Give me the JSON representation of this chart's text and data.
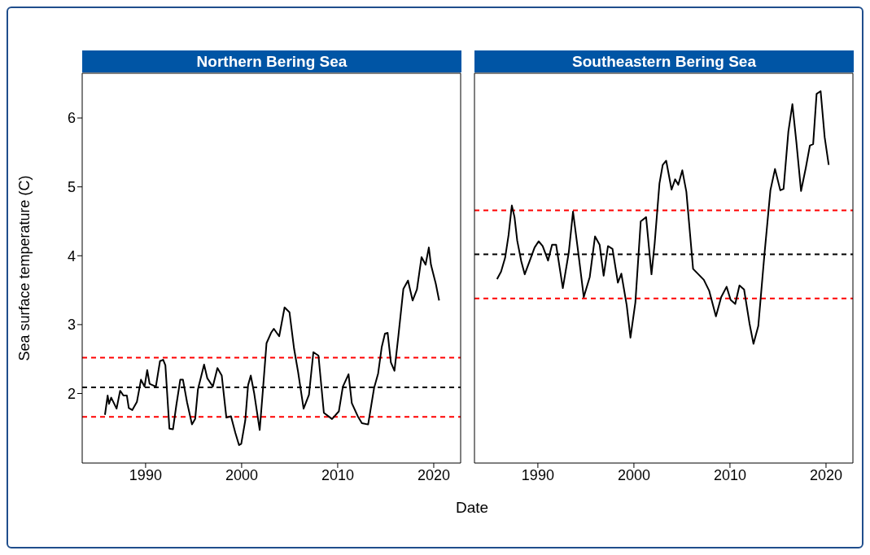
{
  "chart_data": [
    {
      "type": "line",
      "title": "Northern Bering Sea",
      "xlabel": "Date",
      "ylabel": "Sea surface temperature (C)",
      "xlim": [
        1983.4,
        2022.8
      ],
      "xticks": [
        1990,
        2000,
        2010,
        2020
      ],
      "ylim": [
        0.99,
        6.65
      ],
      "yticks": [
        2,
        3,
        4,
        5,
        6
      ],
      "grid": false,
      "legend": false,
      "marker": "none",
      "series": [
        {
          "color": "#000000",
          "x": [
            1985.77,
            1986.05,
            1986.19,
            1986.42,
            1986.98,
            1987.35,
            1987.69,
            1988.05,
            1988.25,
            1988.62,
            1989.1,
            1989.52,
            1989.89,
            1990.17,
            1990.42,
            1991.07,
            1991.5,
            1991.83,
            1992.06,
            1992.48,
            1992.85,
            1993.19,
            1993.61,
            1993.89,
            1994.32,
            1994.83,
            1995.16,
            1995.45,
            1996.09,
            1996.43,
            1997.0,
            1997.48,
            1997.93,
            1998.41,
            1998.89,
            1999.34,
            1999.73,
            1999.96,
            2000.38,
            2000.67,
            2000.95,
            2001.31,
            2001.88,
            2002.22,
            2002.59,
            2003.06,
            2003.35,
            2003.91,
            2004.47,
            2004.98,
            2005.46,
            2005.88,
            2006.45,
            2007.01,
            2007.47,
            2008.0,
            2008.56,
            2009.41,
            2010.12,
            2010.54,
            2011.13,
            2011.47,
            2012.09,
            2012.52,
            2013.17,
            2013.79,
            2014.21,
            2014.58,
            2014.92,
            2015.2,
            2015.54,
            2015.91,
            2016.33,
            2016.84,
            2017.32,
            2017.8,
            2018.25,
            2018.73,
            2019.15,
            2019.49,
            2019.71,
            2020.22,
            2020.56
          ],
          "values": [
            1.69,
            1.97,
            1.85,
            1.94,
            1.78,
            2.04,
            1.97,
            1.97,
            1.79,
            1.76,
            1.88,
            2.2,
            2.1,
            2.34,
            2.14,
            2.1,
            2.47,
            2.49,
            2.41,
            1.49,
            1.48,
            1.82,
            2.2,
            2.2,
            1.87,
            1.55,
            1.63,
            2.06,
            2.42,
            2.22,
            2.1,
            2.37,
            2.26,
            1.65,
            1.67,
            1.43,
            1.25,
            1.27,
            1.61,
            2.12,
            2.26,
            2.0,
            1.47,
            2.06,
            2.73,
            2.88,
            2.94,
            2.83,
            3.25,
            3.18,
            2.65,
            2.31,
            1.78,
            1.98,
            2.6,
            2.55,
            1.72,
            1.63,
            1.74,
            2.1,
            2.28,
            1.86,
            1.67,
            1.57,
            1.55,
            2.08,
            2.29,
            2.67,
            2.87,
            2.88,
            2.45,
            2.33,
            2.85,
            3.52,
            3.64,
            3.35,
            3.51,
            3.98,
            3.87,
            4.12,
            3.87,
            3.59,
            3.35
          ]
        }
      ],
      "ref_lines": [
        {
          "axis": "y",
          "value": 2.52,
          "color": "#ff0000",
          "line_style": "dashed"
        },
        {
          "axis": "y",
          "value": 2.09,
          "color": "#000000",
          "line_style": "dashed"
        },
        {
          "axis": "y",
          "value": 1.66,
          "color": "#ff0000",
          "line_style": "dashed"
        }
      ]
    },
    {
      "type": "line",
      "title": "Southeastern Bering Sea",
      "xlim": [
        1983.4,
        2022.8
      ],
      "xticks": [
        1990,
        2000,
        2010,
        2020
      ],
      "ylim": [
        0.99,
        6.65
      ],
      "tick_labels": "x",
      "grid": false,
      "legend": false,
      "marker": "none",
      "series": [
        {
          "color": "#000000",
          "x": [
            1985.75,
            1986.17,
            1986.59,
            1986.95,
            1987.29,
            1987.57,
            1987.85,
            1988.27,
            1988.63,
            1989.11,
            1989.66,
            1990.08,
            1990.5,
            1991.06,
            1991.48,
            1991.9,
            1992.6,
            1993.22,
            1993.66,
            1994.22,
            1994.78,
            1995.4,
            1995.95,
            1996.43,
            1996.85,
            1997.3,
            1997.77,
            1998.33,
            1998.69,
            1999.25,
            1999.64,
            2000.15,
            2000.71,
            2001.27,
            2001.83,
            2002.16,
            2002.66,
            2003.0,
            2003.36,
            2003.92,
            2004.29,
            2004.62,
            2005.04,
            2005.46,
            2006.16,
            2006.72,
            2007.28,
            2007.84,
            2008.54,
            2009.09,
            2009.65,
            2010.07,
            2010.55,
            2010.99,
            2011.47,
            2012.03,
            2012.45,
            2012.95,
            2013.57,
            2014.21,
            2014.69,
            2015.24,
            2015.58,
            2016.08,
            2016.5,
            2016.92,
            2017.4,
            2017.9,
            2018.32,
            2018.66,
            2019.02,
            2019.44,
            2019.86,
            2020.28
          ],
          "values": [
            3.66,
            3.77,
            3.97,
            4.3,
            4.73,
            4.56,
            4.22,
            3.92,
            3.73,
            3.91,
            4.12,
            4.21,
            4.14,
            3.93,
            4.16,
            4.16,
            3.53,
            4.05,
            4.64,
            4.03,
            3.4,
            3.69,
            4.28,
            4.16,
            3.71,
            4.14,
            4.1,
            3.61,
            3.74,
            3.28,
            2.81,
            3.32,
            4.5,
            4.56,
            3.73,
            4.18,
            5.05,
            5.32,
            5.38,
            4.96,
            5.11,
            5.03,
            5.24,
            4.93,
            3.81,
            3.73,
            3.65,
            3.49,
            3.12,
            3.4,
            3.55,
            3.36,
            3.3,
            3.57,
            3.51,
            3.02,
            2.72,
            2.98,
            3.99,
            4.95,
            5.26,
            4.95,
            4.97,
            5.8,
            6.2,
            5.64,
            4.94,
            5.28,
            5.6,
            5.62,
            6.35,
            6.39,
            5.72,
            5.32
          ]
        }
      ],
      "ref_lines": [
        {
          "axis": "y",
          "value": 4.66,
          "color": "#ff0000",
          "line_style": "dashed"
        },
        {
          "axis": "y",
          "value": 4.02,
          "color": "#000000",
          "line_style": "dashed"
        },
        {
          "axis": "y",
          "value": 3.38,
          "color": "#ff0000",
          "line_style": "dashed"
        }
      ]
    }
  ]
}
